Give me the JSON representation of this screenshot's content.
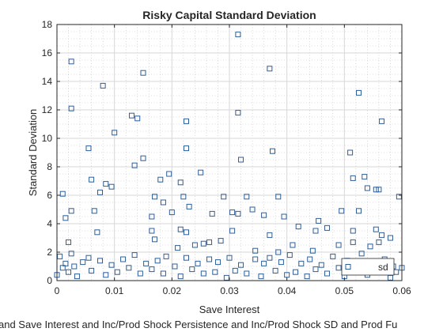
{
  "chart_data": {
    "type": "scatter",
    "title": "Risky Capital Standard Deviation",
    "xlabel": "Save Interest",
    "ylabel": "Standard Deviation",
    "caption": "and Save Interest and Inc/Prod Shock Persistence and Inc/Prod Shock SD and Prod Fu",
    "xlim": [
      0,
      0.06
    ],
    "ylim": [
      0,
      18
    ],
    "xticks": [
      "0",
      "0.01",
      "0.02",
      "0.03",
      "0.04",
      "0.05",
      "0.06"
    ],
    "yticks": [
      "0",
      "2",
      "4",
      "6",
      "8",
      "10",
      "12",
      "14",
      "16",
      "18"
    ],
    "grid": true,
    "minor_grid": true,
    "marker_color": "#2e5f9a",
    "legend": {
      "entries": [
        "sd"
      ],
      "placement": "bottom-right"
    },
    "series": [
      {
        "name": "sd",
        "points": [
          [
            0.0025,
            15.4
          ],
          [
            0.0025,
            12.1
          ],
          [
            0.008,
            13.7
          ],
          [
            0.015,
            14.6
          ],
          [
            0.0315,
            17.3
          ],
          [
            0.037,
            14.9
          ],
          [
            0.0525,
            13.2
          ],
          [
            0.013,
            11.6
          ],
          [
            0.014,
            11.4
          ],
          [
            0.0225,
            11.2
          ],
          [
            0.0315,
            11.8
          ],
          [
            0.0565,
            11.2
          ],
          [
            0.01,
            10.4
          ],
          [
            0.0055,
            9.3
          ],
          [
            0.0225,
            9.3
          ],
          [
            0.0375,
            9.1
          ],
          [
            0.051,
            9.0
          ],
          [
            0.015,
            8.6
          ],
          [
            0.0135,
            8.1
          ],
          [
            0.032,
            8.5
          ],
          [
            0.006,
            7.1
          ],
          [
            0.018,
            7.1
          ],
          [
            0.0195,
            7.5
          ],
          [
            0.0215,
            6.9
          ],
          [
            0.025,
            7.6
          ],
          [
            0.0515,
            7.2
          ],
          [
            0.0535,
            7.3
          ],
          [
            0.001,
            6.1
          ],
          [
            0.0085,
            6.8
          ],
          [
            0.0075,
            6.2
          ],
          [
            0.0095,
            6.6
          ],
          [
            0.017,
            5.9
          ],
          [
            0.0185,
            5.5
          ],
          [
            0.022,
            5.9
          ],
          [
            0.029,
            5.9
          ],
          [
            0.033,
            5.9
          ],
          [
            0.0385,
            5.9
          ],
          [
            0.054,
            6.5
          ],
          [
            0.0555,
            6.4
          ],
          [
            0.056,
            6.4
          ],
          [
            0.0595,
            5.9
          ],
          [
            0.0015,
            4.4
          ],
          [
            0.0025,
            4.9
          ],
          [
            0.0065,
            4.9
          ],
          [
            0.0165,
            4.5
          ],
          [
            0.02,
            4.8
          ],
          [
            0.023,
            5.2
          ],
          [
            0.027,
            4.7
          ],
          [
            0.0305,
            4.8
          ],
          [
            0.0315,
            4.7
          ],
          [
            0.034,
            5.0
          ],
          [
            0.036,
            4.6
          ],
          [
            0.0395,
            4.5
          ],
          [
            0.0455,
            4.2
          ],
          [
            0.0495,
            4.9
          ],
          [
            0.0525,
            4.9
          ],
          [
            0.007,
            3.4
          ],
          [
            0.0165,
            3.5
          ],
          [
            0.0215,
            3.6
          ],
          [
            0.0225,
            3.4
          ],
          [
            0.0305,
            3.5
          ],
          [
            0.037,
            3.2
          ],
          [
            0.042,
            3.8
          ],
          [
            0.045,
            3.5
          ],
          [
            0.047,
            3.7
          ],
          [
            0.0515,
            3.5
          ],
          [
            0.0555,
            3.6
          ],
          [
            0.0565,
            3.2
          ],
          [
            0.058,
            3.0
          ],
          [
            0.002,
            2.7
          ],
          [
            0.017,
            2.9
          ],
          [
            0.021,
            2.3
          ],
          [
            0.024,
            2.5
          ],
          [
            0.0255,
            2.6
          ],
          [
            0.0265,
            2.7
          ],
          [
            0.0285,
            2.8
          ],
          [
            0.0345,
            2.1
          ],
          [
            0.0385,
            2.0
          ],
          [
            0.041,
            2.5
          ],
          [
            0.0445,
            2.1
          ],
          [
            0.049,
            2.5
          ],
          [
            0.0515,
            2.7
          ],
          [
            0.0545,
            2.4
          ],
          [
            0.056,
            2.7
          ],
          [
            0.0,
            0.4
          ],
          [
            0.0005,
            1.7
          ],
          [
            0.001,
            0.9
          ],
          [
            0.0015,
            1.2
          ],
          [
            0.002,
            0.6
          ],
          [
            0.0025,
            1.9
          ],
          [
            0.003,
            1.0
          ],
          [
            0.0035,
            0.3
          ],
          [
            0.0045,
            1.3
          ],
          [
            0.0055,
            1.6
          ],
          [
            0.006,
            0.7
          ],
          [
            0.0075,
            1.4
          ],
          [
            0.0085,
            0.4
          ],
          [
            0.0095,
            1.1
          ],
          [
            0.0105,
            0.6
          ],
          [
            0.0115,
            1.5
          ],
          [
            0.0125,
            0.9
          ],
          [
            0.0135,
            1.8
          ],
          [
            0.0145,
            0.5
          ],
          [
            0.0155,
            1.2
          ],
          [
            0.0165,
            0.8
          ],
          [
            0.0175,
            1.4
          ],
          [
            0.0185,
            0.5
          ],
          [
            0.019,
            1.7
          ],
          [
            0.0205,
            1.0
          ],
          [
            0.0215,
            0.3
          ],
          [
            0.0225,
            1.6
          ],
          [
            0.0235,
            0.8
          ],
          [
            0.0245,
            1.2
          ],
          [
            0.0255,
            0.5
          ],
          [
            0.0265,
            1.5
          ],
          [
            0.0275,
            0.6
          ],
          [
            0.028,
            1.3
          ],
          [
            0.0295,
            0.2
          ],
          [
            0.03,
            1.6
          ],
          [
            0.031,
            0.7
          ],
          [
            0.032,
            1.1
          ],
          [
            0.033,
            0.5
          ],
          [
            0.0345,
            1.5
          ],
          [
            0.0355,
            0.3
          ],
          [
            0.036,
            1.2
          ],
          [
            0.037,
            1.6
          ],
          [
            0.038,
            0.7
          ],
          [
            0.039,
            1.3
          ],
          [
            0.04,
            0.4
          ],
          [
            0.0405,
            1.8
          ],
          [
            0.0415,
            0.6
          ],
          [
            0.0425,
            1.2
          ],
          [
            0.0435,
            0.3
          ],
          [
            0.044,
            1.5
          ],
          [
            0.045,
            0.8
          ],
          [
            0.046,
            1.1
          ],
          [
            0.047,
            0.5
          ],
          [
            0.048,
            1.7
          ],
          [
            0.049,
            0.9
          ],
          [
            0.05,
            0.3
          ],
          [
            0.0505,
            1.4
          ],
          [
            0.052,
            0.7
          ],
          [
            0.053,
            1.9
          ],
          [
            0.054,
            0.4
          ],
          [
            0.055,
            1.1
          ],
          [
            0.056,
            0.8
          ],
          [
            0.057,
            1.5
          ],
          [
            0.058,
            0.2
          ],
          [
            0.0585,
            1.0
          ],
          [
            0.059,
            0.6
          ],
          [
            0.06,
            0.9
          ]
        ]
      }
    ]
  }
}
